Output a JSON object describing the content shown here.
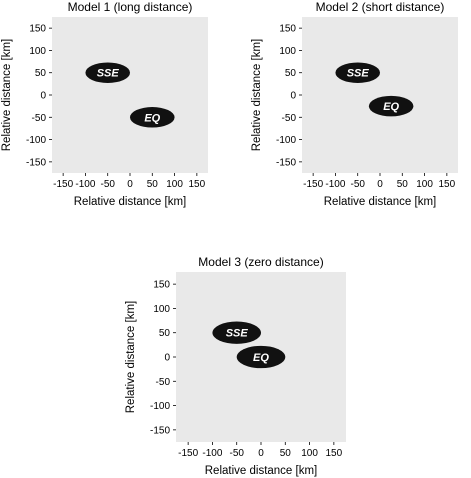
{
  "chart_data": [
    {
      "type": "scatter",
      "title": "Model 1 (long distance)",
      "xlabel": "Relative distance [km]",
      "ylabel": "Relative distance [km]",
      "xlim": [
        -175,
        175
      ],
      "ylim": [
        -175,
        175
      ],
      "xticks": [
        -150,
        -100,
        -50,
        0,
        50,
        100,
        150
      ],
      "yticks": [
        150,
        100,
        50,
        0,
        -50,
        -100,
        -150
      ],
      "grid": false,
      "regions": [
        {
          "label": "SSE",
          "x": -50,
          "y": 50,
          "rx": 50,
          "ry": 23
        },
        {
          "label": "EQ",
          "x": 50,
          "y": -50,
          "rx": 50,
          "ry": 23
        }
      ]
    },
    {
      "type": "scatter",
      "title": "Model 2 (short distance)",
      "xlabel": "Relative distance [km]",
      "ylabel": "Relative distance [km]",
      "xlim": [
        -175,
        175
      ],
      "ylim": [
        -175,
        175
      ],
      "xticks": [
        -150,
        -100,
        -50,
        0,
        50,
        100,
        150
      ],
      "yticks": [
        150,
        100,
        50,
        0,
        -50,
        -100,
        -150
      ],
      "grid": false,
      "regions": [
        {
          "label": "SSE",
          "x": -50,
          "y": 50,
          "rx": 50,
          "ry": 23
        },
        {
          "label": "EQ",
          "x": 25,
          "y": -25,
          "rx": 50,
          "ry": 23
        }
      ]
    },
    {
      "type": "scatter",
      "title": "Model 3 (zero distance)",
      "xlabel": "Relative distance [km]",
      "ylabel": "Relative distance [km]",
      "xlim": [
        -175,
        175
      ],
      "ylim": [
        -175,
        175
      ],
      "xticks": [
        -150,
        -100,
        -50,
        0,
        50,
        100,
        150
      ],
      "yticks": [
        150,
        100,
        50,
        0,
        -50,
        -100,
        -150
      ],
      "grid": false,
      "regions": [
        {
          "label": "SSE",
          "x": -50,
          "y": 50,
          "rx": 50,
          "ry": 23
        },
        {
          "label": "EQ",
          "x": 0,
          "y": 0,
          "rx": 50,
          "ry": 23
        }
      ]
    }
  ],
  "colors": {
    "plot_background": "#e9e9e9",
    "region_fill": "#111111",
    "region_text": "#ffffff"
  }
}
